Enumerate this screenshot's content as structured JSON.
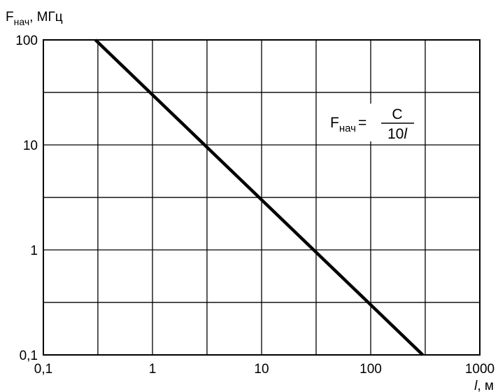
{
  "chart_data": {
    "type": "line",
    "title": "",
    "ylabel": {
      "main": "F",
      "sub": "нач",
      "unit": ", МГц"
    },
    "xlabel": {
      "var": "l",
      "unit": ", м"
    },
    "x_scale": "log",
    "y_scale": "log",
    "xlim": [
      0.1,
      1000
    ],
    "ylim": [
      0.1,
      100
    ],
    "x_ticks": [
      0.1,
      1,
      10,
      100,
      1000
    ],
    "x_tick_labels": [
      "0,1",
      "1",
      "10",
      "100",
      "1000"
    ],
    "y_ticks": [
      0.1,
      1,
      10,
      100
    ],
    "y_tick_labels": [
      "0,1",
      "1",
      "10",
      "100"
    ],
    "x_grid": [
      0.1,
      0.316,
      1,
      3.16,
      10,
      31.6,
      100,
      316,
      1000
    ],
    "y_grid": [
      0.1,
      0.316,
      1,
      3.16,
      10,
      31.6,
      100
    ],
    "grid": true,
    "series": [
      {
        "x": [
          0.3,
          300
        ],
        "y": [
          100,
          0.1
        ]
      }
    ],
    "annotation": {
      "lhs_main": "F",
      "lhs_sub": "нач",
      "equals": "=",
      "numerator": "C",
      "denominator_num": "10",
      "denominator_var": "l"
    }
  }
}
